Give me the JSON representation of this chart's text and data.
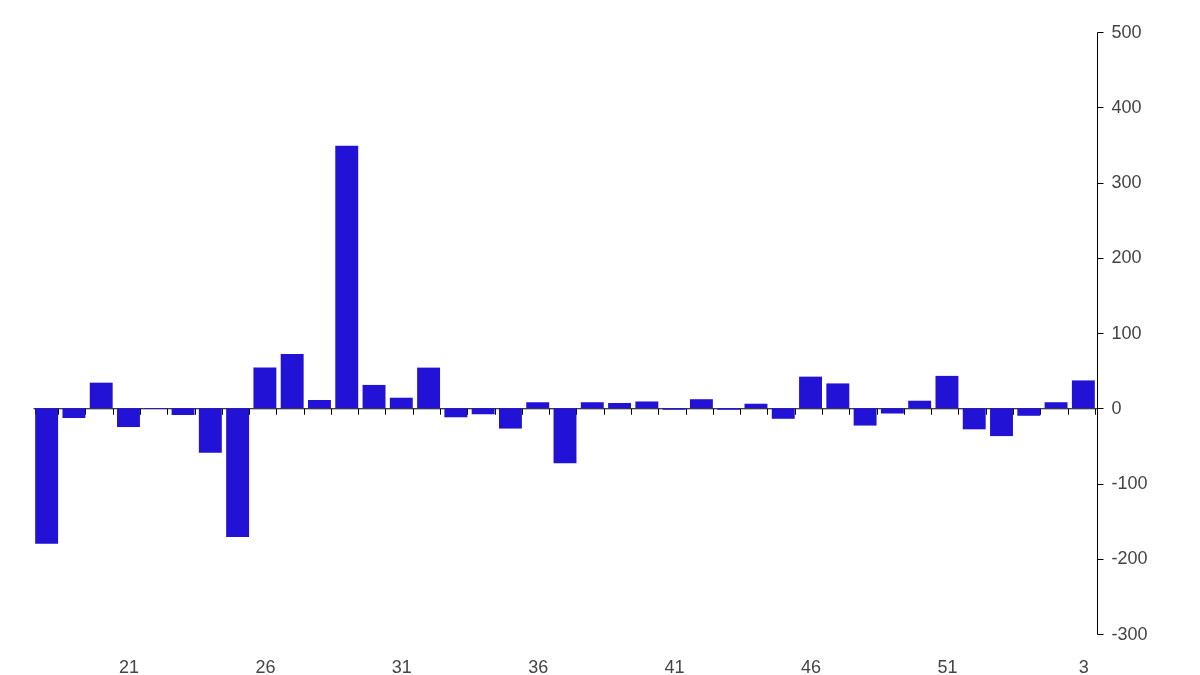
{
  "chart_data": {
    "type": "bar",
    "categories": [
      null,
      null,
      null,
      "21",
      null,
      null,
      null,
      null,
      "26",
      null,
      null,
      null,
      null,
      "31",
      null,
      null,
      null,
      null,
      "36",
      null,
      null,
      null,
      null,
      "41",
      null,
      null,
      null,
      null,
      "46",
      null,
      null,
      null,
      null,
      "51",
      null,
      null,
      null,
      null,
      "3"
    ],
    "values": [
      -180,
      -13,
      34,
      -25,
      -1,
      -9,
      -59,
      -171,
      54,
      72,
      11,
      349,
      31,
      14,
      54,
      -12,
      -8,
      -27,
      8,
      -73,
      8,
      7,
      9,
      -2,
      12,
      -2,
      6,
      -14,
      42,
      33,
      -23,
      -7,
      10,
      43,
      -28,
      -37,
      -10,
      8,
      37
    ],
    "color": "#2212d6",
    "ylim": [
      -300,
      500
    ],
    "yticks": [
      -300,
      -200,
      -100,
      0,
      100,
      200,
      300,
      400,
      500
    ]
  }
}
